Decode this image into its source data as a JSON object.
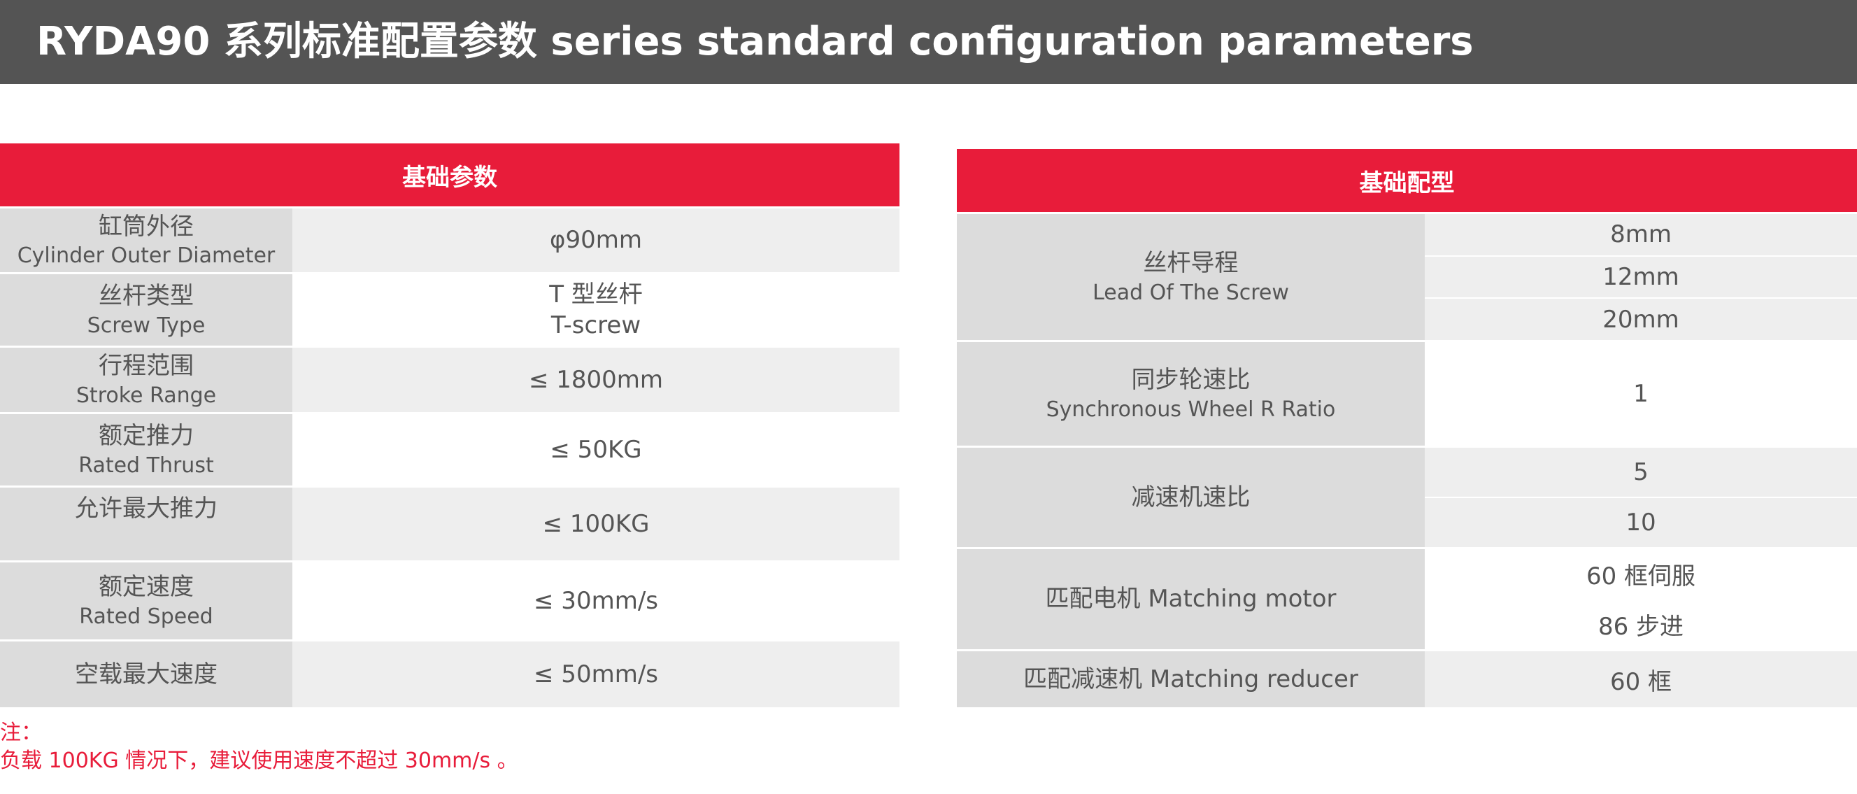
{
  "title": "RYDA90 系列标准配置参数 series standard configuration parameters",
  "colors": {
    "header_red": "#e81c3a",
    "title_bar": "#545454"
  },
  "left": {
    "header": "基础参数",
    "rows": [
      {
        "zh": "缸筒外径",
        "en": "Cylinder Outer Diameter",
        "v1": "φ90mm",
        "v2": ""
      },
      {
        "zh": "丝杆类型",
        "en": "Screw Type",
        "v1": "T 型丝杆",
        "v2": "T-screw"
      },
      {
        "zh": "行程范围",
        "en": "Stroke Range",
        "v1": "≤ 1800mm",
        "v2": ""
      },
      {
        "zh": "额定推力",
        "en": "Rated Thrust",
        "v1": "≤ 50KG",
        "v2": ""
      },
      {
        "zh": "允许最大推力",
        "en": "",
        "v1": "≤ 100KG",
        "v2": ""
      },
      {
        "zh": "额定速度",
        "en": "Rated Speed",
        "v1": "≤ 30mm/s",
        "v2": ""
      },
      {
        "zh": "空载最大速度",
        "en": "",
        "v1": "≤ 50mm/s",
        "v2": ""
      }
    ]
  },
  "right": {
    "header": "基础配型",
    "rows": [
      {
        "zh": "丝杆导程",
        "en": "Lead Of The Screw",
        "values": [
          "8mm",
          "12mm",
          "20mm"
        ]
      },
      {
        "zh": "同步轮速比",
        "en": "Synchronous Wheel R Ratio",
        "values": [
          "1"
        ]
      },
      {
        "zh": "减速机速比",
        "en": "",
        "values": [
          "5",
          "10"
        ]
      },
      {
        "zh": "匹配电机 Matching motor",
        "en": "",
        "values": [
          "60 框伺服",
          "86 步进"
        ]
      },
      {
        "zh": "匹配减速机 Matching reducer",
        "en": "",
        "values": [
          "60 框"
        ]
      }
    ]
  },
  "note": {
    "label": "注：",
    "text": "负载 100KG 情况下，建议使用速度不超过 30mm/s 。"
  }
}
